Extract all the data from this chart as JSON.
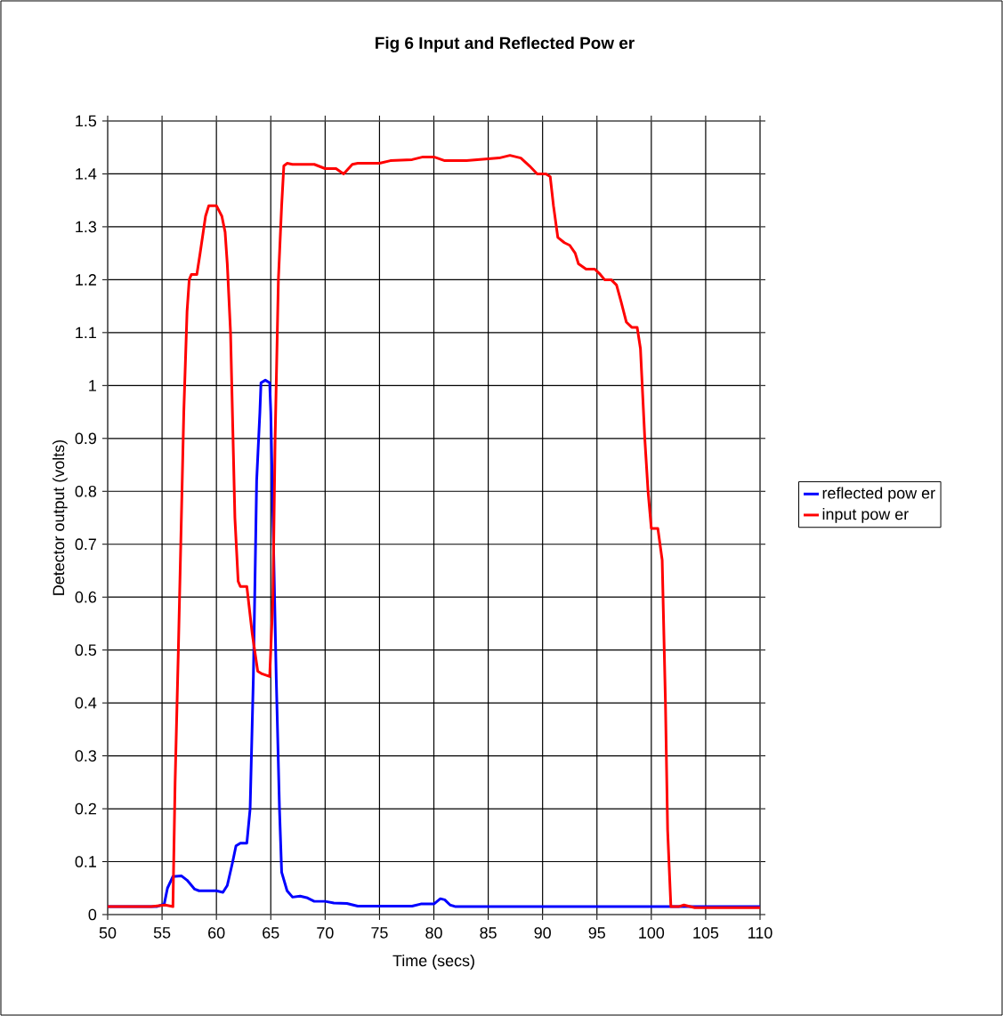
{
  "chart_data": {
    "type": "line",
    "title": "Fig 6 Input and Reflected Pow er",
    "xlabel": "Time (secs)",
    "ylabel": "Detector output (volts)",
    "xlim": [
      50,
      110
    ],
    "xticks": [
      50,
      55,
      60,
      65,
      70,
      75,
      80,
      85,
      90,
      95,
      100,
      105,
      110
    ],
    "ylim": [
      0,
      1.5
    ],
    "yticks": [
      0,
      0.1,
      0.2,
      0.3,
      0.4,
      0.5,
      0.6,
      0.7,
      0.8,
      0.9,
      1,
      1.1,
      1.2,
      1.3,
      1.4,
      1.5
    ],
    "grid": true,
    "legend": "right",
    "marker": "none",
    "line_style": "solid",
    "series": [
      {
        "name": "reflected pow er",
        "color": "#0000ff",
        "x": [
          50,
          54.5,
          55.2,
          55.5,
          56,
          56.8,
          57.3,
          58,
          58.4,
          60,
          60.6,
          61,
          61.5,
          61.8,
          62.2,
          62.8,
          63.1,
          63.4,
          63.7,
          64,
          64.1,
          64.5,
          64.9,
          65.0,
          65.3,
          65.5,
          65.8,
          66,
          66.5,
          67,
          67.7,
          68.3,
          69,
          70,
          70.8,
          72,
          73,
          78,
          78.8,
          80,
          80.6,
          81,
          81.5,
          82,
          110
        ],
        "values": [
          0.015,
          0.015,
          0.02,
          0.05,
          0.072,
          0.073,
          0.065,
          0.048,
          0.045,
          0.045,
          0.042,
          0.055,
          0.1,
          0.13,
          0.135,
          0.135,
          0.2,
          0.45,
          0.82,
          0.95,
          1.005,
          1.01,
          1.005,
          0.95,
          0.65,
          0.45,
          0.2,
          0.08,
          0.045,
          0.033,
          0.035,
          0.032,
          0.025,
          0.025,
          0.022,
          0.021,
          0.016,
          0.016,
          0.02,
          0.02,
          0.03,
          0.028,
          0.018,
          0.015,
          0.015
        ]
      },
      {
        "name": "input pow er",
        "color": "#ff0000",
        "x": [
          50,
          54,
          55.3,
          56.0,
          56.2,
          56.5,
          57.0,
          57.3,
          57.5,
          57.7,
          58.2,
          58.5,
          59.0,
          59.3,
          60.0,
          60.5,
          60.8,
          61.0,
          61.3,
          61.7,
          62.0,
          62.2,
          62.8,
          63.3,
          63.8,
          64.2,
          64.9,
          65.2,
          65.4,
          65.7,
          66.0,
          66.2,
          66.5,
          67,
          69,
          70,
          71,
          71.7,
          72.5,
          73,
          75,
          76,
          78,
          79,
          80,
          81,
          83,
          84,
          86,
          87,
          88,
          88.8,
          89.5,
          90.3,
          90.7,
          91,
          91.4,
          92,
          92.5,
          93,
          93.3,
          94,
          94.8,
          95.3,
          95.7,
          96.3,
          96.8,
          97.2,
          97.7,
          98.2,
          98.7,
          99,
          99.4,
          99.7,
          100.0,
          100.6,
          101.0,
          101.3,
          101.5,
          101.8,
          102.5,
          103,
          104,
          110
        ],
        "values": [
          0.015,
          0.015,
          0.018,
          0.015,
          0.25,
          0.5,
          0.95,
          1.14,
          1.2,
          1.21,
          1.21,
          1.25,
          1.32,
          1.34,
          1.34,
          1.32,
          1.29,
          1.23,
          1.1,
          0.75,
          0.63,
          0.62,
          0.62,
          0.53,
          0.46,
          0.455,
          0.45,
          0.6,
          0.9,
          1.2,
          1.34,
          1.415,
          1.42,
          1.418,
          1.418,
          1.41,
          1.41,
          1.4,
          1.418,
          1.42,
          1.42,
          1.425,
          1.427,
          1.432,
          1.432,
          1.425,
          1.425,
          1.427,
          1.43,
          1.435,
          1.43,
          1.415,
          1.4,
          1.4,
          1.395,
          1.34,
          1.28,
          1.27,
          1.265,
          1.25,
          1.23,
          1.22,
          1.22,
          1.21,
          1.2,
          1.2,
          1.19,
          1.16,
          1.12,
          1.11,
          1.11,
          1.07,
          0.9,
          0.8,
          0.73,
          0.73,
          0.67,
          0.4,
          0.16,
          0.015,
          0.015,
          0.018,
          0.013,
          0.013
        ]
      }
    ]
  }
}
